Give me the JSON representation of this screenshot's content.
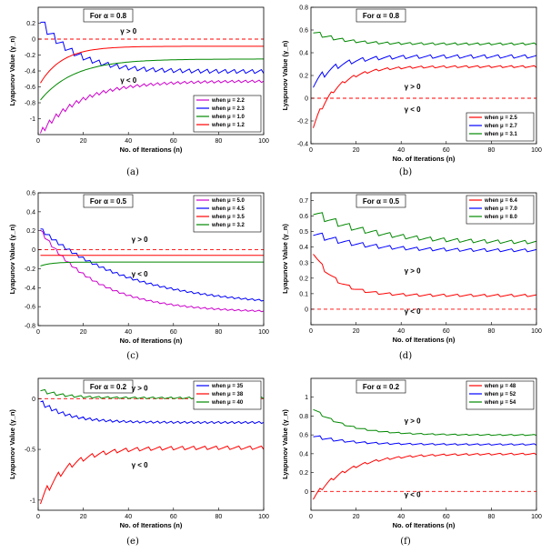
{
  "chart_data": [
    {
      "type": "line",
      "caption": "(a)",
      "alpha_label": "For α = 0.8",
      "xlabel": "No. of Iterations (n)",
      "ylabel": "Lyapunov Value (γ_n)",
      "xlim": [
        0,
        100
      ],
      "ylim": [
        -1.2,
        0.4
      ],
      "xticks": [
        0,
        20,
        40,
        60,
        80,
        100
      ],
      "yticks": [
        -1,
        -0.8,
        -0.6,
        -0.4,
        -0.2,
        0,
        0.2
      ],
      "ytick_labels": [
        "-1",
        "-0.8",
        "-0.6",
        "-0.4",
        "-0.2",
        "0",
        "0.2"
      ],
      "gt_label": "γ > 0",
      "gt_pos": [
        40,
        0.07
      ],
      "lt_label": "γ < 0",
      "lt_pos": [
        40,
        -0.55
      ],
      "legend": "bottom-right",
      "series": [
        {
          "name": "when μ = 2.2",
          "color": "#cc00cc",
          "final": -0.52,
          "start": -1.2,
          "amp": 0.06,
          "period": 3,
          "decay": 18
        },
        {
          "name": "when μ = 2.3",
          "color": "#0000ff",
          "final": -0.4,
          "start": 0.3,
          "amp": 0.09,
          "period": 4,
          "decay": 15
        },
        {
          "name": "when μ = 1.0",
          "color": "#008800",
          "final": -0.25,
          "start": -0.8,
          "amp": 0.0,
          "period": 1,
          "decay": 15
        },
        {
          "name": "when μ = 1.2",
          "color": "#ff0000",
          "final": -0.09,
          "start": -0.6,
          "amp": 0.0,
          "period": 1,
          "decay": 10
        }
      ]
    },
    {
      "type": "line",
      "caption": "(b)",
      "alpha_label": "For α = 0.8",
      "xlabel": "No. of Iterations (n)",
      "ylabel": "Lyapunov Value (γ_n)",
      "xlim": [
        0,
        100
      ],
      "ylim": [
        -0.4,
        0.8
      ],
      "xticks": [
        0,
        20,
        40,
        60,
        80,
        100
      ],
      "yticks": [
        -0.4,
        -0.2,
        0,
        0.2,
        0.4,
        0.6,
        0.8
      ],
      "ytick_labels": [
        "-0.4",
        "-0.2",
        "0",
        "0.2",
        "0.4",
        "0.6",
        "0.8"
      ],
      "gt_label": "γ > 0",
      "gt_pos": [
        45,
        0.08
      ],
      "lt_label": "γ < 0",
      "lt_pos": [
        45,
        -0.12
      ],
      "legend": "bottom-right",
      "series": [
        {
          "name": "when μ = 2.5",
          "color": "#ff0000",
          "final": 0.28,
          "start": -0.3,
          "amp": 0.03,
          "period": 5,
          "decay": 10
        },
        {
          "name": "when μ = 2.7",
          "color": "#0000ff",
          "final": 0.37,
          "start": 0.1,
          "amp": 0.05,
          "period": 6,
          "decay": 10
        },
        {
          "name": "when μ = 3.1",
          "color": "#008800",
          "final": 0.48,
          "start": 0.6,
          "amp": 0.03,
          "period": 5,
          "decay": 12
        }
      ]
    },
    {
      "type": "line",
      "caption": "(c)",
      "alpha_label": "For α = 0.5",
      "xlabel": "No. of Iterations (n)",
      "ylabel": "Lyapunov Value (γ_n)",
      "xlim": [
        0,
        100
      ],
      "ylim": [
        -0.8,
        0.6
      ],
      "xticks": [
        0,
        20,
        40,
        60,
        80,
        100
      ],
      "yticks": [
        -0.8,
        -0.6,
        -0.4,
        -0.2,
        0,
        0.2,
        0.4,
        0.6
      ],
      "ytick_labels": [
        "-0.8",
        "-0.6",
        "-0.4",
        "-0.2",
        "0",
        "0.2",
        "0.4",
        "0.6"
      ],
      "gt_label": "γ > 0",
      "gt_pos": [
        45,
        0.08
      ],
      "lt_label": "γ < 0",
      "lt_pos": [
        45,
        -0.28
      ],
      "legend": "top-right",
      "series": [
        {
          "name": "when μ = 5.0",
          "color": "#cc00cc",
          "final": -0.66,
          "start": 0.25,
          "amp": 0.03,
          "period": 3,
          "decay": 25
        },
        {
          "name": "when μ = 4.5",
          "color": "#0000ff",
          "final": -0.6,
          "start": 0.25,
          "amp": 0.03,
          "period": 3,
          "decay": 40
        },
        {
          "name": "when μ = 3.5",
          "color": "#ff0000",
          "final": -0.06,
          "start": -0.06,
          "amp": 0.0,
          "period": 1,
          "decay": 5
        },
        {
          "name": "when μ = 3.2",
          "color": "#008800",
          "final": -0.13,
          "start": -0.18,
          "amp": 0.0,
          "period": 1,
          "decay": 5
        }
      ]
    },
    {
      "type": "line",
      "caption": "(d)",
      "alpha_label": "For α = 0.5",
      "xlabel": "No. of Iterations (n)",
      "ylabel": "Lyapunov Value (γ_n)",
      "xlim": [
        0,
        100
      ],
      "ylim": [
        -0.1,
        0.75
      ],
      "xticks": [
        0,
        20,
        40,
        60,
        80,
        100
      ],
      "yticks": [
        -0.1,
        0,
        0.1,
        0.2,
        0.3,
        0.4,
        0.5,
        0.6,
        0.7
      ],
      "ytick_labels": [
        "",
        "0",
        "0.1",
        "0.2",
        "0.3",
        "0.4",
        "0.5",
        "0.6",
        "0.7"
      ],
      "gt_label": "γ > 0",
      "gt_pos": [
        45,
        0.23
      ],
      "lt_label": "γ < 0",
      "lt_pos": [
        45,
        -0.03
      ],
      "legend": "top-right",
      "series": [
        {
          "name": "when μ = 6.4",
          "color": "#ff0000",
          "final": 0.09,
          "start": 0.4,
          "amp": 0.025,
          "period": 6,
          "decay": 10
        },
        {
          "name": "when μ = 7.0",
          "color": "#0000ff",
          "final": 0.38,
          "start": 0.5,
          "amp": 0.03,
          "period": 6,
          "decay": 20
        },
        {
          "name": "when μ = 8.0",
          "color": "#008800",
          "final": 0.43,
          "start": 0.64,
          "amp": 0.035,
          "period": 6,
          "decay": 25
        }
      ]
    },
    {
      "type": "line",
      "caption": "(e)",
      "alpha_label": "For α = 0.2",
      "xlabel": "No. of Iterations (n)",
      "ylabel": "Lyapunov Value (γ_n)",
      "xlim": [
        0,
        100
      ],
      "ylim": [
        -1.1,
        0.2
      ],
      "xticks": [
        0,
        20,
        40,
        60,
        80,
        100
      ],
      "yticks": [
        -1,
        -0.5,
        0
      ],
      "ytick_labels": [
        "-1",
        "-0.5",
        "0"
      ],
      "gt_label": "γ > 0",
      "gt_pos": [
        45,
        0.08
      ],
      "lt_label": "γ < 0",
      "lt_pos": [
        45,
        -0.68
      ],
      "legend": "top-right",
      "series": [
        {
          "name": "when μ = 35",
          "color": "#0000ff",
          "final": -0.23,
          "start": 0.0,
          "amp": 0.04,
          "period": 3,
          "decay": 12
        },
        {
          "name": "when μ = 38",
          "color": "#ff0000",
          "final": -0.48,
          "start": -1.05,
          "amp": 0.06,
          "period": 5,
          "decay": 12
        },
        {
          "name": "when μ = 40",
          "color": "#008800",
          "final": 0.01,
          "start": 0.1,
          "amp": 0.03,
          "period": 4,
          "decay": 10
        }
      ]
    },
    {
      "type": "line",
      "caption": "(f)",
      "alpha_label": "For α = 0.2",
      "xlabel": "No. of Iterations (n)",
      "ylabel": "Lyapunov Value (γ_n)",
      "xlim": [
        0,
        100
      ],
      "ylim": [
        -0.2,
        1.2
      ],
      "xticks": [
        0,
        20,
        40,
        60,
        80,
        100
      ],
      "yticks": [
        0,
        0.2,
        0.4,
        0.6,
        0.8,
        1.0
      ],
      "ytick_labels": [
        "0",
        "0.2",
        "0.4",
        "0.6",
        "0.8",
        "1"
      ],
      "gt_label": "γ > 0",
      "gt_pos": [
        45,
        0.72
      ],
      "lt_label": "γ < 0",
      "lt_pos": [
        45,
        -0.06
      ],
      "legend": "top-right",
      "series": [
        {
          "name": "when μ = 48",
          "color": "#ff0000",
          "final": 0.4,
          "start": -0.1,
          "amp": 0.03,
          "period": 5,
          "decay": 15
        },
        {
          "name": "when μ = 52",
          "color": "#0000ff",
          "final": 0.5,
          "start": 0.6,
          "amp": 0.025,
          "period": 5,
          "decay": 15
        },
        {
          "name": "when μ = 54",
          "color": "#008800",
          "final": 0.6,
          "start": 0.9,
          "amp": 0.02,
          "period": 5,
          "decay": 15
        }
      ]
    }
  ]
}
